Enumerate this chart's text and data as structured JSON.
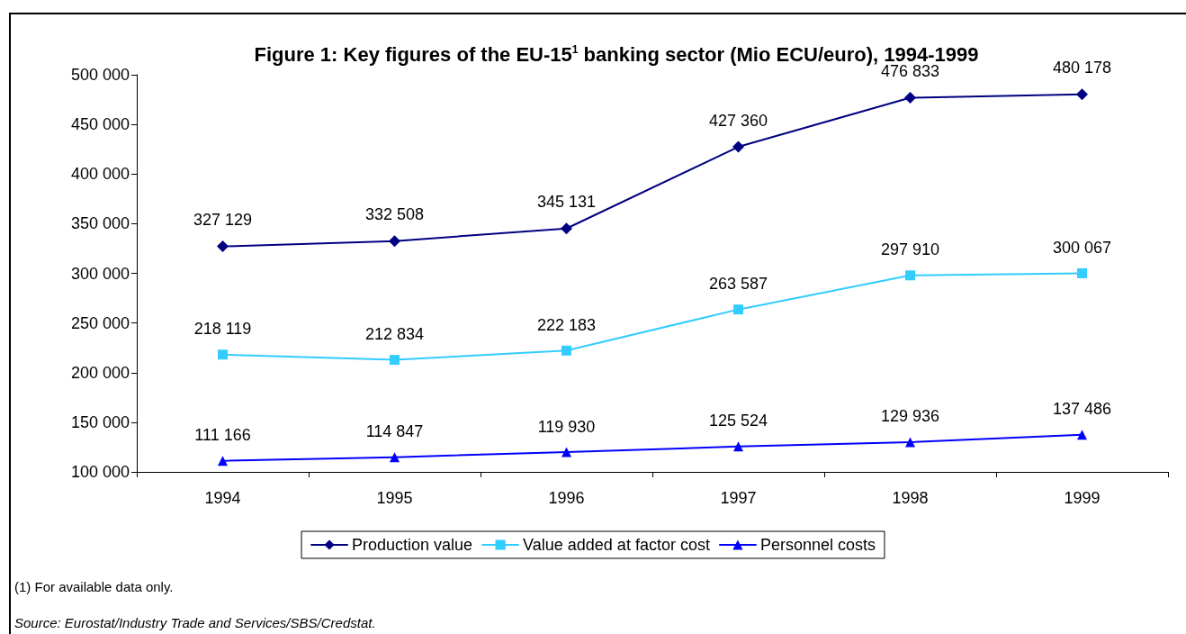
{
  "chart_data": {
    "type": "line",
    "title": "Figure 1: Key figures of the EU-15$^{1}$ banking sector (Mio ECU/euro), 1994-1999",
    "categories": [
      "1994",
      "1995",
      "1996",
      "1997",
      "1998",
      "1999"
    ],
    "series": [
      {
        "name": "Production value",
        "color": "#000080",
        "marker": "diamond",
        "values": [
          327129,
          332508,
          345131,
          427360,
          476833,
          480178
        ],
        "value_labels": [
          "327 129",
          "332 508",
          "345 131",
          "427 360",
          "476 833",
          "480 178"
        ]
      },
      {
        "name": "Value added at factor cost",
        "color": "#33ccff",
        "marker": "square",
        "values": [
          218119,
          212834,
          222183,
          263587,
          297910,
          300067
        ],
        "value_labels": [
          "218 119",
          "212 834",
          "222 183",
          "263 587",
          "297 910",
          "300 067"
        ]
      },
      {
        "name": "Personnel costs",
        "color": "#0000ff",
        "marker": "triangle",
        "values": [
          111166,
          114847,
          119930,
          125524,
          129936,
          137486
        ],
        "value_labels": [
          "111 166",
          "114 847",
          "119 930",
          "125 524",
          "129 936",
          "137 486"
        ]
      }
    ],
    "ylim": [
      100000,
      500000
    ],
    "yticks": [
      {
        "value": 100000,
        "label": "100 000"
      },
      {
        "value": 150000,
        "label": "150 000"
      },
      {
        "value": 200000,
        "label": "200 000"
      },
      {
        "value": 250000,
        "label": "250 000"
      },
      {
        "value": 300000,
        "label": "300 000"
      },
      {
        "value": 350000,
        "label": "350 000"
      },
      {
        "value": 400000,
        "label": "400 000"
      },
      {
        "value": 450000,
        "label": "450 000"
      },
      {
        "value": 500000,
        "label": "500 000"
      }
    ],
    "grid": false,
    "legend": "bottom",
    "line_style": "solid",
    "annotations": [
      "(1) For available data only.",
      "Source: Eurostat/Industry Trade and Services/SBS/Credstat."
    ]
  }
}
